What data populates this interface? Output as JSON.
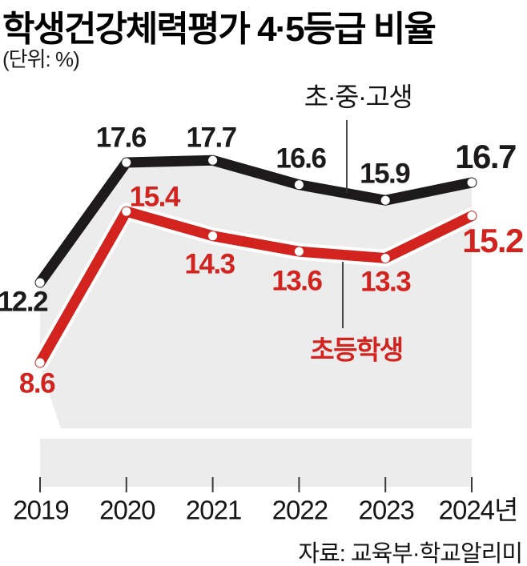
{
  "header": {
    "title": "학생건강체력평가 4·5등급 비율",
    "unit_label": "(단위: %)"
  },
  "chart_data": {
    "type": "line",
    "categories": [
      "2019",
      "2020",
      "2021",
      "2022",
      "2023",
      "2024년"
    ],
    "series": [
      {
        "name": "초·중·고생",
        "color": "#1d1a1b",
        "values": [
          12.2,
          17.6,
          17.7,
          16.6,
          15.9,
          16.7
        ]
      },
      {
        "name": "초등학생",
        "color": "#d2231e",
        "values": [
          8.6,
          15.4,
          14.3,
          13.6,
          13.3,
          15.2
        ]
      }
    ],
    "value_labels_shown": true,
    "emphasized_last_value": true,
    "plot_bg_color": "#ececec",
    "marker_color": "#ffffff",
    "y_axis_visible": false,
    "grid": false,
    "ylim_visible": [
      8,
      19
    ],
    "legend_position": "inline-callouts"
  },
  "source": {
    "label": "자료: 교육부·학교알리미"
  }
}
